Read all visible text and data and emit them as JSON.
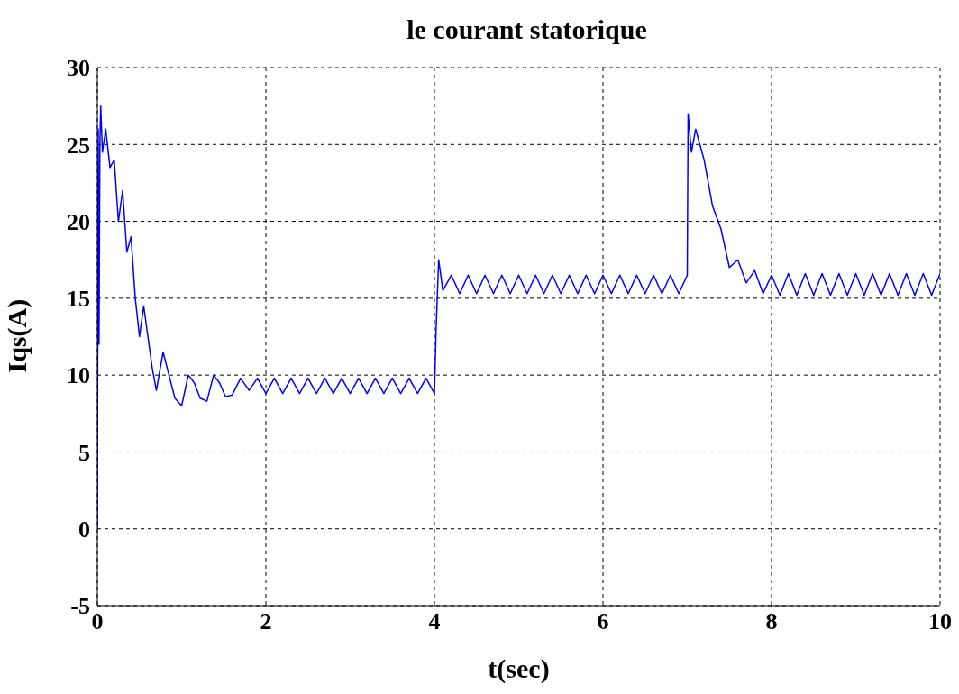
{
  "chart_data": {
    "type": "line",
    "title": "le courant statorique",
    "xlabel": "t(sec)",
    "ylabel": "Iqs(A)",
    "x": [
      0,
      0.01,
      0.02,
      0.03,
      0.04,
      0.06,
      0.1,
      0.15,
      0.2,
      0.25,
      0.3,
      0.35,
      0.4,
      0.45,
      0.5,
      0.55,
      0.6,
      0.65,
      0.7,
      0.78,
      0.85,
      0.92,
      1.0,
      1.08,
      1.15,
      1.22,
      1.3,
      1.38,
      1.45,
      1.52,
      1.6,
      1.7,
      1.8,
      1.9,
      2.0,
      2.1,
      2.2,
      2.3,
      2.4,
      2.5,
      2.6,
      2.7,
      2.8,
      2.9,
      3.0,
      3.1,
      3.2,
      3.3,
      3.4,
      3.5,
      3.6,
      3.7,
      3.8,
      3.9,
      4.0,
      4.02,
      4.05,
      4.1,
      4.2,
      4.3,
      4.4,
      4.5,
      4.6,
      4.7,
      4.8,
      4.9,
      5.0,
      5.1,
      5.2,
      5.3,
      5.4,
      5.5,
      5.6,
      5.7,
      5.8,
      5.9,
      6.0,
      6.1,
      6.2,
      6.3,
      6.4,
      6.5,
      6.6,
      6.7,
      6.8,
      6.9,
      7.0,
      7.01,
      7.05,
      7.1,
      7.2,
      7.3,
      7.4,
      7.5,
      7.6,
      7.7,
      7.8,
      7.9,
      8.0,
      8.1,
      8.2,
      8.3,
      8.4,
      8.5,
      8.6,
      8.7,
      8.8,
      8.9,
      9.0,
      9.1,
      9.2,
      9.3,
      9.4,
      9.5,
      9.6,
      9.7,
      9.8,
      9.9,
      10.0
    ],
    "series": [
      {
        "color": "#0000ff",
        "values": [
          0,
          26,
          12,
          25,
          27.5,
          24.5,
          26,
          23.5,
          24,
          20,
          22,
          18,
          19,
          15,
          12.5,
          14.5,
          12.5,
          10.5,
          9,
          11.5,
          10,
          8.5,
          8,
          10,
          9.5,
          8.5,
          8.3,
          10,
          9.5,
          8.6,
          8.7,
          9.8,
          9,
          9.8,
          8.8,
          9.8,
          8.8,
          9.8,
          8.8,
          9.8,
          8.8,
          9.8,
          8.8,
          9.8,
          8.8,
          9.8,
          8.8,
          9.8,
          8.8,
          9.8,
          8.8,
          9.8,
          8.8,
          9.8,
          8.8,
          13,
          17.5,
          15.5,
          16.5,
          15.3,
          16.5,
          15.3,
          16.5,
          15.3,
          16.5,
          15.3,
          16.5,
          15.3,
          16.5,
          15.3,
          16.5,
          15.3,
          16.5,
          15.3,
          16.5,
          15.3,
          16.5,
          15.3,
          16.5,
          15.3,
          16.5,
          15.3,
          16.5,
          15.3,
          16.5,
          15.3,
          16.5,
          27,
          24.5,
          26,
          24,
          21,
          19.5,
          17,
          17.5,
          16,
          16.8,
          15.3,
          16.5,
          15.2,
          16.6,
          15.2,
          16.6,
          15.2,
          16.6,
          15.2,
          16.6,
          15.2,
          16.6,
          15.2,
          16.6,
          15.2,
          16.6,
          15.2,
          16.6,
          15.2,
          16.6,
          15.2,
          16.6
        ]
      }
    ],
    "xlim": [
      0,
      10
    ],
    "xticks": [
      0,
      2,
      4,
      6,
      8,
      10
    ],
    "ylim": [
      -5,
      30
    ],
    "yticks": [
      -5,
      0,
      5,
      10,
      15,
      20,
      25,
      30
    ],
    "grid": true,
    "line_style": "solid",
    "marker": "none",
    "legend": false
  }
}
